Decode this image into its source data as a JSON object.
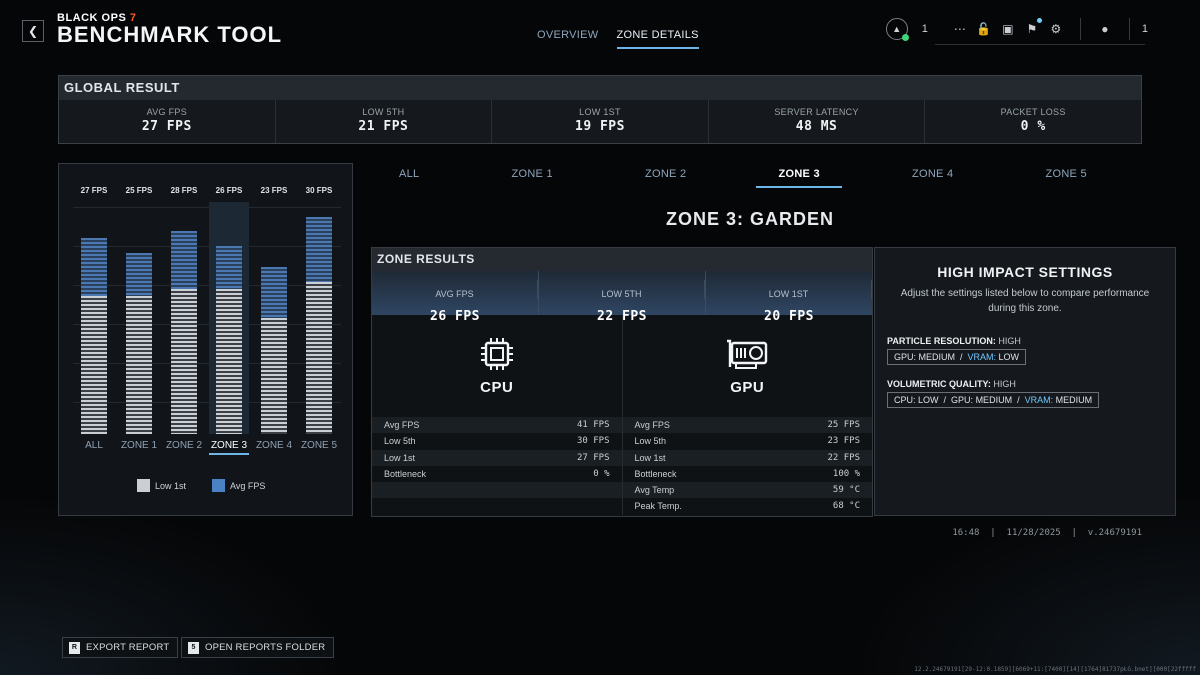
{
  "header": {
    "back_icon": "chevron-left-icon",
    "brand_sub_prefix": "BLACK OPS ",
    "brand_sub_num": "7",
    "title": "BENCHMARK TOOL",
    "tabs": [
      {
        "label": "OVERVIEW",
        "active": false
      },
      {
        "label": "ZONE DETAILS",
        "active": true
      }
    ],
    "rank_count": "1",
    "party_count": "1"
  },
  "global": {
    "title": "GLOBAL RESULT",
    "metrics": [
      {
        "label": "AVG FPS",
        "value": "27 FPS"
      },
      {
        "label": "LOW 5TH",
        "value": "21 FPS"
      },
      {
        "label": "LOW 1ST",
        "value": "19 FPS"
      },
      {
        "label": "SERVER LATENCY",
        "value": "48 MS"
      },
      {
        "label": "PACKET LOSS",
        "value": "0 %"
      }
    ]
  },
  "chart_data": {
    "type": "bar",
    "categories": [
      "ALL",
      "ZONE 1",
      "ZONE 2",
      "ZONE 3",
      "ZONE 4",
      "ZONE 5"
    ],
    "value_labels": [
      "27 FPS",
      "25 FPS",
      "28 FPS",
      "26 FPS",
      "23 FPS",
      "30 FPS"
    ],
    "series": [
      {
        "name": "Low 1st",
        "values": [
          19,
          19,
          20,
          20,
          16,
          21
        ]
      },
      {
        "name": "Avg FPS",
        "values": [
          27,
          25,
          28,
          26,
          23,
          30
        ]
      }
    ],
    "ylim": [
      0,
      32
    ],
    "selected": "ZONE 3",
    "colors": {
      "low": "#c9cfd4",
      "avg": "#4b82c3"
    }
  },
  "zones": {
    "tabs": [
      "ALL",
      "ZONE 1",
      "ZONE 2",
      "ZONE 3",
      "ZONE 4",
      "ZONE 5"
    ],
    "active": "ZONE 3",
    "title": "ZONE 3: GARDEN"
  },
  "zone_results": {
    "title": "ZONE RESULTS",
    "summary": [
      {
        "label": "AVG FPS",
        "value": "26 FPS"
      },
      {
        "label": "LOW 5TH",
        "value": "22 FPS"
      },
      {
        "label": "LOW 1ST",
        "value": "20 FPS"
      }
    ],
    "cpu": {
      "name": "CPU",
      "stats": [
        {
          "label": "Avg FPS",
          "value": "41 FPS"
        },
        {
          "label": "Low 5th",
          "value": "30 FPS"
        },
        {
          "label": "Low 1st",
          "value": "27 FPS"
        },
        {
          "label": "Bottleneck",
          "value": "0 %"
        }
      ]
    },
    "gpu": {
      "name": "GPU",
      "stats": [
        {
          "label": "Avg FPS",
          "value": "25 FPS"
        },
        {
          "label": "Low 5th",
          "value": "23 FPS"
        },
        {
          "label": "Low 1st",
          "value": "22 FPS"
        },
        {
          "label": "Bottleneck",
          "value": "100 %"
        },
        {
          "label": "Avg Temp",
          "value": "59 °C"
        },
        {
          "label": "Peak Temp.",
          "value": "68 °C"
        }
      ]
    }
  },
  "high_impact": {
    "title": "HIGH IMPACT SETTINGS",
    "description": "Adjust the settings listed below to compare performance during this zone.",
    "settings": [
      {
        "name": "PARTICLE RESOLUTION:",
        "level": " HIGH",
        "gpu_label": "GPU:",
        "gpu_value": " MEDIUM",
        "sep": "  /  ",
        "vram_label": "VRAM:",
        "vram_value": " LOW"
      },
      {
        "name": "VOLUMETRIC QUALITY:",
        "level": " HIGH",
        "cpu_label": "CPU:",
        "cpu_value": " LOW",
        "sep1": "  /  ",
        "gpu_label": "GPU:",
        "gpu_value": " MEDIUM",
        "sep2": "  /  ",
        "vram_label": "VRAM:",
        "vram_value": " MEDIUM"
      }
    ]
  },
  "status": "16:48  |  11/28/2025  |  v.24679191",
  "footer": {
    "export_key": "R",
    "export_label": "EXPORT REPORT",
    "open_key": "5",
    "open_label": "OPEN REPORTS FOLDER",
    "build": "12.2.24679191[29-12:0.1859][6069+11:[7400][14][1764]81737pŁG.bnet][000[22fffff"
  }
}
